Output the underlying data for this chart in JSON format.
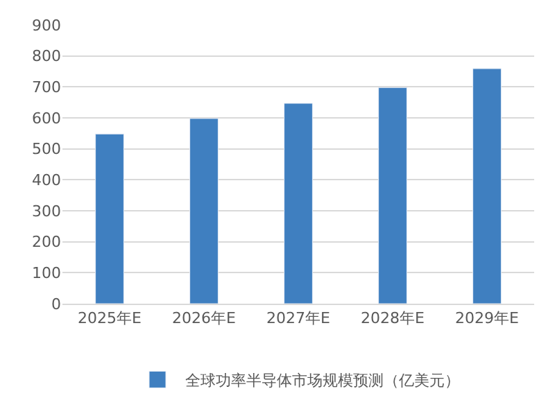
{
  "chart_data": {
    "type": "bar",
    "categories": [
      "2025年E",
      "2026年E",
      "2027年E",
      "2028年E",
      "2029年E"
    ],
    "series": [
      {
        "name": "全球功率半导体市场规模预测（亿美元）",
        "color": "#3f7fc0",
        "values": [
          548,
          598,
          647,
          698,
          759
        ]
      }
    ],
    "ylim": [
      0,
      900
    ],
    "yticks": [
      0,
      100,
      200,
      300,
      400,
      500,
      600,
      700,
      800,
      900
    ],
    "grid": "y",
    "legend": "bottom"
  }
}
